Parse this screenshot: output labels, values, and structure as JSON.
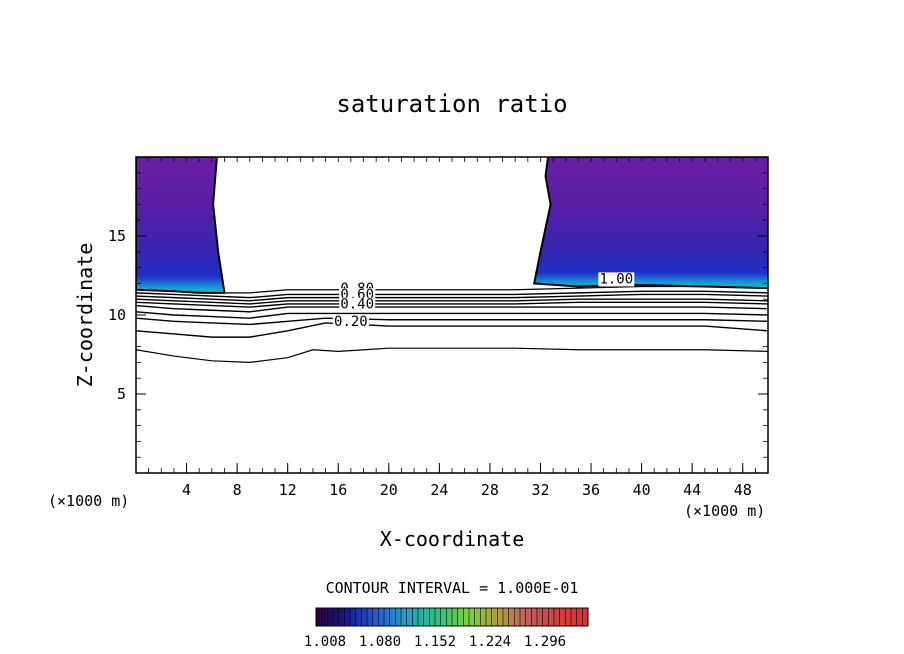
{
  "chart_data": {
    "type": "contour",
    "title": "saturation ratio",
    "xlabel": "X-coordinate",
    "ylabel": "Z-coordinate",
    "x_units": "(×1000 m)",
    "z_units": "(×1000 m)",
    "xlim": [
      0,
      50
    ],
    "ylim": [
      0,
      20
    ],
    "x_ticks": [
      4,
      8,
      12,
      16,
      20,
      24,
      28,
      32,
      36,
      40,
      44,
      48
    ],
    "y_ticks": [
      5,
      10,
      15
    ],
    "contour_interval_text": "CONTOUR INTERVAL = 1.000E-01",
    "colorbar": {
      "tick_labels": [
        "1.008",
        "1.080",
        "1.152",
        "1.224",
        "1.296"
      ],
      "colors": [
        "#2a0036",
        "#1a1a8a",
        "#2a5ad2",
        "#25a0c0",
        "#30c080",
        "#7ad040",
        "#b0a040",
        "#c06060",
        "#d04040",
        "#e03030"
      ]
    },
    "contour_labels": [
      {
        "text": "1.00",
        "x": 38.0,
        "z": 12.0
      },
      {
        "text": "0.80",
        "x": 17.5,
        "z": 11.4
      },
      {
        "text": "0.60",
        "x": 17.5,
        "z": 11.0
      },
      {
        "text": "0.40",
        "x": 17.5,
        "z": 10.4
      },
      {
        "text": "0.20",
        "x": 17.0,
        "z": 9.3
      }
    ],
    "contour_lines": [
      {
        "level": 1.0,
        "points": [
          [
            0,
            11.6
          ],
          [
            3,
            11.5
          ],
          [
            6,
            11.4
          ],
          [
            9,
            11.4
          ],
          [
            12,
            11.6
          ],
          [
            15,
            11.6
          ],
          [
            20,
            11.6
          ],
          [
            25,
            11.6
          ],
          [
            30,
            11.6
          ],
          [
            35,
            11.7
          ],
          [
            40,
            11.8
          ],
          [
            45,
            11.8
          ],
          [
            50,
            11.7
          ]
        ]
      },
      {
        "level": 0.9,
        "points": [
          [
            0,
            11.4
          ],
          [
            3,
            11.3
          ],
          [
            6,
            11.2
          ],
          [
            9,
            11.1
          ],
          [
            12,
            11.3
          ],
          [
            15,
            11.3
          ],
          [
            20,
            11.3
          ],
          [
            25,
            11.3
          ],
          [
            30,
            11.3
          ],
          [
            35,
            11.4
          ],
          [
            40,
            11.5
          ],
          [
            45,
            11.5
          ],
          [
            50,
            11.4
          ]
        ]
      },
      {
        "level": 0.8,
        "points": [
          [
            0,
            11.2
          ],
          [
            3,
            11.1
          ],
          [
            6,
            11.0
          ],
          [
            9,
            10.9
          ],
          [
            12,
            11.1
          ],
          [
            15,
            11.1
          ],
          [
            20,
            11.1
          ],
          [
            25,
            11.1
          ],
          [
            30,
            11.1
          ],
          [
            35,
            11.2
          ],
          [
            40,
            11.3
          ],
          [
            45,
            11.3
          ],
          [
            50,
            11.2
          ]
        ]
      },
      {
        "level": 0.7,
        "points": [
          [
            0,
            11.0
          ],
          [
            3,
            10.9
          ],
          [
            6,
            10.8
          ],
          [
            9,
            10.7
          ],
          [
            12,
            10.9
          ],
          [
            15,
            10.9
          ],
          [
            20,
            10.9
          ],
          [
            25,
            10.9
          ],
          [
            30,
            10.9
          ],
          [
            35,
            11.0
          ],
          [
            40,
            11.0
          ],
          [
            45,
            11.0
          ],
          [
            50,
            10.9
          ]
        ]
      },
      {
        "level": 0.6,
        "points": [
          [
            0,
            10.8
          ],
          [
            3,
            10.7
          ],
          [
            6,
            10.6
          ],
          [
            9,
            10.5
          ],
          [
            12,
            10.7
          ],
          [
            15,
            10.7
          ],
          [
            20,
            10.7
          ],
          [
            25,
            10.7
          ],
          [
            30,
            10.7
          ],
          [
            35,
            10.8
          ],
          [
            40,
            10.8
          ],
          [
            45,
            10.8
          ],
          [
            50,
            10.7
          ]
        ]
      },
      {
        "level": 0.5,
        "points": [
          [
            0,
            10.6
          ],
          [
            3,
            10.4
          ],
          [
            6,
            10.3
          ],
          [
            9,
            10.2
          ],
          [
            12,
            10.5
          ],
          [
            15,
            10.5
          ],
          [
            20,
            10.5
          ],
          [
            25,
            10.5
          ],
          [
            30,
            10.5
          ],
          [
            35,
            10.5
          ],
          [
            40,
            10.5
          ],
          [
            45,
            10.5
          ],
          [
            50,
            10.4
          ]
        ]
      },
      {
        "level": 0.4,
        "points": [
          [
            0,
            10.2
          ],
          [
            3,
            10.0
          ],
          [
            6,
            9.9
          ],
          [
            9,
            9.8
          ],
          [
            12,
            10.1
          ],
          [
            15,
            10.1
          ],
          [
            20,
            10.1
          ],
          [
            25,
            10.1
          ],
          [
            30,
            10.1
          ],
          [
            35,
            10.1
          ],
          [
            40,
            10.1
          ],
          [
            45,
            10.1
          ],
          [
            50,
            10.0
          ]
        ]
      },
      {
        "level": 0.3,
        "points": [
          [
            0,
            9.8
          ],
          [
            3,
            9.6
          ],
          [
            6,
            9.5
          ],
          [
            9,
            9.4
          ],
          [
            12,
            9.6
          ],
          [
            15,
            9.8
          ],
          [
            20,
            9.7
          ],
          [
            25,
            9.7
          ],
          [
            30,
            9.7
          ],
          [
            35,
            9.7
          ],
          [
            40,
            9.7
          ],
          [
            45,
            9.7
          ],
          [
            50,
            9.6
          ]
        ]
      },
      {
        "level": 0.2,
        "points": [
          [
            0,
            9.0
          ],
          [
            3,
            8.8
          ],
          [
            6,
            8.6
          ],
          [
            9,
            8.6
          ],
          [
            12,
            9.0
          ],
          [
            15,
            9.5
          ],
          [
            20,
            9.3
          ],
          [
            25,
            9.3
          ],
          [
            30,
            9.3
          ],
          [
            35,
            9.3
          ],
          [
            40,
            9.3
          ],
          [
            45,
            9.3
          ],
          [
            50,
            9.0
          ]
        ]
      },
      {
        "level": 0.1,
        "points": [
          [
            0,
            7.8
          ],
          [
            3,
            7.4
          ],
          [
            6,
            7.1
          ],
          [
            9,
            7.0
          ],
          [
            12,
            7.3
          ],
          [
            14,
            7.8
          ],
          [
            16,
            7.7
          ],
          [
            20,
            7.9
          ],
          [
            25,
            7.9
          ],
          [
            30,
            7.9
          ],
          [
            35,
            7.8
          ],
          [
            40,
            7.8
          ],
          [
            45,
            7.8
          ],
          [
            50,
            7.7
          ]
        ]
      }
    ],
    "shaded_regions": [
      {
        "name": "left",
        "boundary": [
          [
            0,
            20
          ],
          [
            6.4,
            20
          ],
          [
            6.1,
            17
          ],
          [
            6.5,
            14
          ],
          [
            7.0,
            11.4
          ],
          [
            5.0,
            11.4
          ],
          [
            3.0,
            11.5
          ],
          [
            0,
            11.6
          ]
        ]
      },
      {
        "name": "right",
        "boundary": [
          [
            32.6,
            20
          ],
          [
            50,
            20
          ],
          [
            50,
            11.7
          ],
          [
            45,
            11.8
          ],
          [
            40,
            11.9
          ],
          [
            35,
            11.8
          ],
          [
            31.5,
            12.0
          ],
          [
            32.0,
            14.0
          ],
          [
            32.8,
            17.0
          ],
          [
            32.4,
            18.8
          ]
        ]
      }
    ]
  }
}
